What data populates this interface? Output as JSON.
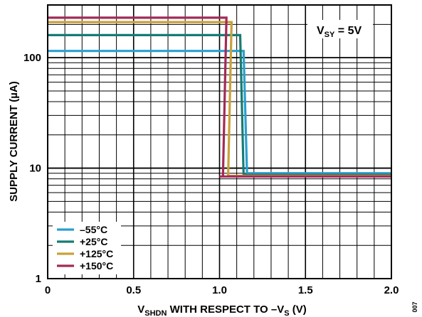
{
  "chart_data": {
    "type": "line",
    "xlabel": {
      "main": "V",
      "sub": "SHDN",
      "rest": " WITH RESPECT TO –V",
      "sub2": "S",
      "unit": " (V)"
    },
    "ylabel": "SUPPLY CURRENT (µA)",
    "xlim": [
      0,
      2.0
    ],
    "ylim": [
      1,
      300
    ],
    "yscale": "log",
    "grid": true,
    "x_ticks": [
      {
        "value": 0,
        "label": "0"
      },
      {
        "value": 0.5,
        "label": "0.5"
      },
      {
        "value": 1.0,
        "label": "1.0"
      },
      {
        "value": 1.5,
        "label": "1.5"
      },
      {
        "value": 2.0,
        "label": "2.0"
      }
    ],
    "y_ticks": [
      {
        "value": 1,
        "label": "1"
      },
      {
        "value": 10,
        "label": "10"
      },
      {
        "value": 100,
        "label": "100"
      }
    ],
    "annotation": {
      "main": "V",
      "sub": "SY",
      "rest": " = 5V"
    },
    "figure_id": "007",
    "legend_position": "bottom-left",
    "series": [
      {
        "name": "–55°C",
        "color": "#2a9fd0",
        "x": [
          0,
          1.14,
          1.16,
          2.0
        ],
        "y": [
          115,
          115,
          9.0,
          9.0
        ]
      },
      {
        "name": "+25°C",
        "color": "#177c72",
        "x": [
          0,
          1.12,
          1.14,
          2.0
        ],
        "y": [
          160,
          160,
          8.7,
          8.7
        ]
      },
      {
        "name": "+125°C",
        "color": "#c9a13a",
        "x": [
          0,
          1.07,
          1.05,
          2.0
        ],
        "y": [
          210,
          210,
          8.5,
          8.5
        ]
      },
      {
        "name": "+150°C",
        "color": "#a32a55",
        "x": [
          0,
          1.04,
          1.02,
          1.0,
          2.0
        ],
        "y": [
          230,
          230,
          8.4,
          8.4,
          8.4
        ]
      }
    ]
  }
}
